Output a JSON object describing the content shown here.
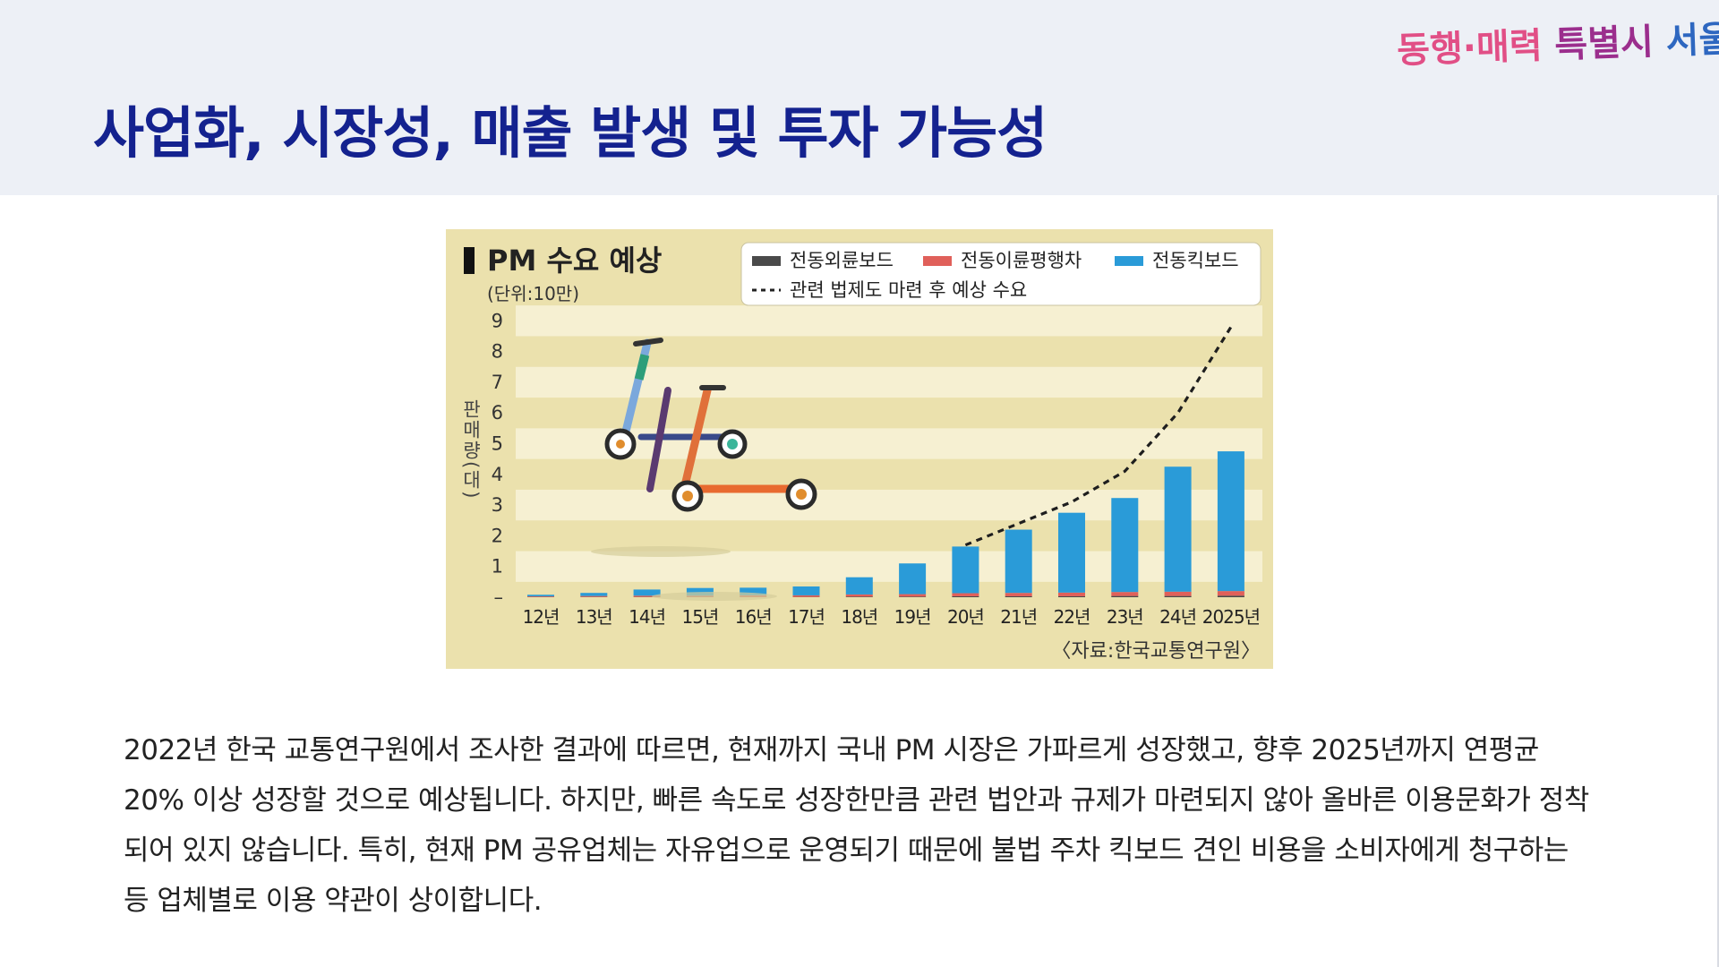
{
  "header": {
    "title": "사업화, 시장성, 매출 발생 및 투자 가능성",
    "logo_part1": "동행·매력",
    "logo_part2": " 특별시",
    "logo_part3": " 서울"
  },
  "chart_data": {
    "type": "bar",
    "title": "PM 수요 예상",
    "subtitle": "(단위:10만)",
    "ylabel": "판매량(대)",
    "source": "〈자료:한국교통연구원〉",
    "categories": [
      "12년",
      "13년",
      "14년",
      "15년",
      "16년",
      "17년",
      "18년",
      "19년",
      "20년",
      "21년",
      "22년",
      "23년",
      "24년",
      "2025년"
    ],
    "y_ticks": [
      "–",
      "1",
      "2",
      "3",
      "4",
      "5",
      "6",
      "7",
      "8",
      "9"
    ],
    "ylim": [
      0,
      9
    ],
    "stacked": true,
    "series": [
      {
        "name": "전동외륜보드",
        "color": "#4a4a4a",
        "values": [
          0.01,
          0.01,
          0.01,
          0.01,
          0.01,
          0.01,
          0.02,
          0.02,
          0.03,
          0.03,
          0.03,
          0.04,
          0.04,
          0.05
        ]
      },
      {
        "name": "전동이륜평행차",
        "color": "#e0605a",
        "values": [
          0.02,
          0.03,
          0.04,
          0.04,
          0.05,
          0.05,
          0.07,
          0.08,
          0.1,
          0.11,
          0.12,
          0.13,
          0.14,
          0.15
        ]
      },
      {
        "name": "전동킥보드",
        "color": "#2a9bd8",
        "values": [
          0.05,
          0.1,
          0.2,
          0.25,
          0.25,
          0.29,
          0.56,
          1.0,
          1.52,
          2.06,
          2.6,
          3.06,
          4.07,
          4.55
        ]
      }
    ],
    "projection": {
      "name": "관련 법제도 마련 후 예상 수요",
      "x_from": "20년",
      "values": [
        1.7,
        2.4,
        3.1,
        4.1,
        6.0,
        8.8
      ]
    },
    "grid": "alternating-bands",
    "legend_position": "top-right"
  },
  "body": {
    "paragraph": " 2022년 한국 교통연구원에서 조사한 결과에 따르면, 현재까지 국내 PM 시장은 가파르게 성장했고, 향후 2025년까지 연평균 20% 이상 성장할 것으로 예상됩니다. 하지만, 빠른 속도로 성장한만큼 관련 법안과 규제가 마련되지 않아 올바른 이용문화가 정착되어 있지 않습니다. 특히, 현재 PM 공유업체는 자유업으로 운영되기 때문에 불법 주차 킥보드 견인 비용을 소비자에게 청구하는 등 업체별로 이용 약관이 상이합니다."
  },
  "icons": [
    "kick-scooter-icon",
    "kick-scooter-icon"
  ]
}
